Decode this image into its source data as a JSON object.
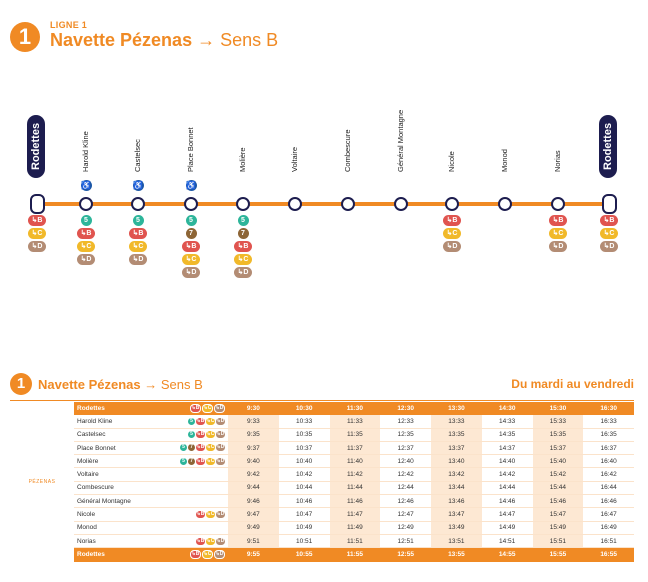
{
  "header": {
    "line_number": "1",
    "line_label": "LIGNE 1",
    "route_name": "Navette Pézenas",
    "arrow": "→",
    "direction": "Sens B"
  },
  "diagram": {
    "start_terminus": "Rodettes",
    "end_terminus": "Rodettes",
    "stops": [
      {
        "name": "Harold Kline",
        "accessible": true,
        "connections": [
          "5",
          "B",
          "C",
          "D"
        ]
      },
      {
        "name": "Castelsec",
        "accessible": true,
        "connections": [
          "5",
          "B",
          "C",
          "D"
        ]
      },
      {
        "name": "Place Bonnet",
        "accessible": true,
        "connections": [
          "5",
          "7",
          "B",
          "C",
          "D"
        ]
      },
      {
        "name": "Molière",
        "accessible": false,
        "connections": [
          "5",
          "7",
          "B",
          "C",
          "D"
        ]
      },
      {
        "name": "Voltaire",
        "accessible": false,
        "connections": []
      },
      {
        "name": "Combescure",
        "accessible": false,
        "connections": []
      },
      {
        "name": "Général Montagne",
        "accessible": false,
        "connections": []
      },
      {
        "name": "Nicole",
        "accessible": false,
        "connections": [
          "B",
          "C",
          "D"
        ]
      },
      {
        "name": "Monod",
        "accessible": false,
        "connections": []
      },
      {
        "name": "Norias",
        "accessible": false,
        "connections": [
          "B",
          "C",
          "D"
        ]
      }
    ],
    "terminus_connections": [
      "B",
      "C",
      "D"
    ]
  },
  "timetable": {
    "line_number": "1",
    "route_name": "Navette Pézenas",
    "arrow": "→",
    "direction": "Sens B",
    "days": "Du mardi au vendredi",
    "zone": "PÉZENAS",
    "rows": [
      {
        "stop": "Rodettes",
        "icons": [
          "B",
          "C",
          "D"
        ],
        "highlight": true,
        "times": [
          "9:30",
          "10:30",
          "11:30",
          "12:30",
          "13:30",
          "14:30",
          "15:30",
          "16:30"
        ]
      },
      {
        "stop": "Harold Kline",
        "icons": [
          "5",
          "B",
          "C",
          "D"
        ],
        "highlight": false,
        "times": [
          "9:33",
          "10:33",
          "11:33",
          "12:33",
          "13:33",
          "14:33",
          "15:33",
          "16:33"
        ]
      },
      {
        "stop": "Castelsec",
        "icons": [
          "5",
          "B",
          "C",
          "D"
        ],
        "highlight": false,
        "times": [
          "9:35",
          "10:35",
          "11:35",
          "12:35",
          "13:35",
          "14:35",
          "15:35",
          "16:35"
        ]
      },
      {
        "stop": "Place Bonnet",
        "icons": [
          "5",
          "7",
          "B",
          "C",
          "D"
        ],
        "highlight": false,
        "times": [
          "9:37",
          "10:37",
          "11:37",
          "12:37",
          "13:37",
          "14:37",
          "15:37",
          "16:37"
        ]
      },
      {
        "stop": "Molière",
        "icons": [
          "5",
          "7",
          "B",
          "C",
          "D"
        ],
        "highlight": false,
        "times": [
          "9:40",
          "10:40",
          "11:40",
          "12:40",
          "13:40",
          "14:40",
          "15:40",
          "16:40"
        ]
      },
      {
        "stop": "Voltaire",
        "icons": [],
        "highlight": false,
        "times": [
          "9:42",
          "10:42",
          "11:42",
          "12:42",
          "13:42",
          "14:42",
          "15:42",
          "16:42"
        ]
      },
      {
        "stop": "Combescure",
        "icons": [],
        "highlight": false,
        "times": [
          "9:44",
          "10:44",
          "11:44",
          "12:44",
          "13:44",
          "14:44",
          "15:44",
          "16:44"
        ]
      },
      {
        "stop": "Général Montagne",
        "icons": [],
        "highlight": false,
        "times": [
          "9:46",
          "10:46",
          "11:46",
          "12:46",
          "13:46",
          "14:46",
          "15:46",
          "16:46"
        ]
      },
      {
        "stop": "Nicole",
        "icons": [
          "B",
          "C",
          "D"
        ],
        "highlight": false,
        "times": [
          "9:47",
          "10:47",
          "11:47",
          "12:47",
          "13:47",
          "14:47",
          "15:47",
          "16:47"
        ]
      },
      {
        "stop": "Monod",
        "icons": [],
        "highlight": false,
        "times": [
          "9:49",
          "10:49",
          "11:49",
          "12:49",
          "13:49",
          "14:49",
          "15:49",
          "16:49"
        ]
      },
      {
        "stop": "Norias",
        "icons": [
          "B",
          "C",
          "D"
        ],
        "highlight": false,
        "times": [
          "9:51",
          "10:51",
          "11:51",
          "12:51",
          "13:51",
          "14:51",
          "15:51",
          "16:51"
        ]
      },
      {
        "stop": "Rodettes",
        "icons": [
          "B",
          "C",
          "D"
        ],
        "highlight": true,
        "times": [
          "9:55",
          "10:55",
          "11:55",
          "12:55",
          "13:55",
          "14:55",
          "15:55",
          "16:55"
        ]
      }
    ]
  },
  "colors": {
    "accent": "#f08a24",
    "navy": "#1d1d4f",
    "line_B": "#e0544f",
    "line_C": "#f1b92a",
    "line_D": "#b38c74",
    "line_5": "#2db59a",
    "line_7": "#8d6536"
  }
}
